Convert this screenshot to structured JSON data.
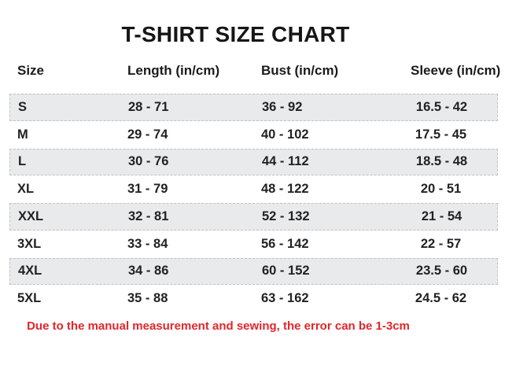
{
  "title": "T-SHIRT SIZE CHART",
  "table": {
    "headers": [
      "Size",
      "Length (in/cm)",
      "Bust (in/cm)",
      "Sleeve (in/cm)"
    ],
    "rows": [
      {
        "size": "S",
        "length": "28 - 71",
        "bust": "36 - 92",
        "sleeve": "16.5 - 42"
      },
      {
        "size": "M",
        "length": "29 - 74",
        "bust": "40 - 102",
        "sleeve": "17.5 - 45"
      },
      {
        "size": "L",
        "length": "30 - 76",
        "bust": "44 - 112",
        "sleeve": "18.5 - 48"
      },
      {
        "size": "XL",
        "length": "31 - 79",
        "bust": "48 - 122",
        "sleeve": "20 - 51"
      },
      {
        "size": "XXL",
        "length": "32 - 81",
        "bust": "52 - 132",
        "sleeve": "21 - 54"
      },
      {
        "size": "3XL",
        "length": "33 - 84",
        "bust": "56 - 142",
        "sleeve": "22 - 57"
      },
      {
        "size": "4XL",
        "length": "34 - 86",
        "bust": "60 - 152",
        "sleeve": "23.5 - 60"
      },
      {
        "size": "5XL",
        "length": "35 - 88",
        "bust": "63 - 162",
        "sleeve": "24.5 - 62"
      }
    ]
  },
  "footer_note": "Due to the manual measurement and sewing, the error can be 1-3cm",
  "colors": {
    "stripe_background": "#e9eaec",
    "stripe_border": "#c2c2c6",
    "note_red": "#e2262b",
    "text": "#1b1b1b",
    "background": "#ffffff"
  },
  "chart_data": {
    "type": "table",
    "title": "T-SHIRT SIZE CHART",
    "columns": [
      "Size",
      "Length (in/cm)",
      "Bust (in/cm)",
      "Sleeve (in/cm)"
    ],
    "rows": [
      [
        "S",
        "28 - 71",
        "36 - 92",
        "16.5 - 42"
      ],
      [
        "M",
        "29 - 74",
        "40 - 102",
        "17.5 - 45"
      ],
      [
        "L",
        "30 - 76",
        "44 - 112",
        "18.5 - 48"
      ],
      [
        "XL",
        "31 - 79",
        "48 - 122",
        "20 - 51"
      ],
      [
        "XXL",
        "32 - 81",
        "52 - 132",
        "21 - 54"
      ],
      [
        "3XL",
        "33 - 84",
        "56 - 142",
        "22 - 57"
      ],
      [
        "4XL",
        "34 - 86",
        "60 - 152",
        "23.5 - 60"
      ],
      [
        "5XL",
        "35 - 88",
        "63 - 162",
        "24.5 - 62"
      ]
    ],
    "note": "Due to the manual measurement and sewing, the error can be 1-3cm",
    "layout": {
      "striped_rows": [
        0,
        2,
        4,
        6
      ],
      "grid": "off",
      "legend": "none"
    }
  }
}
